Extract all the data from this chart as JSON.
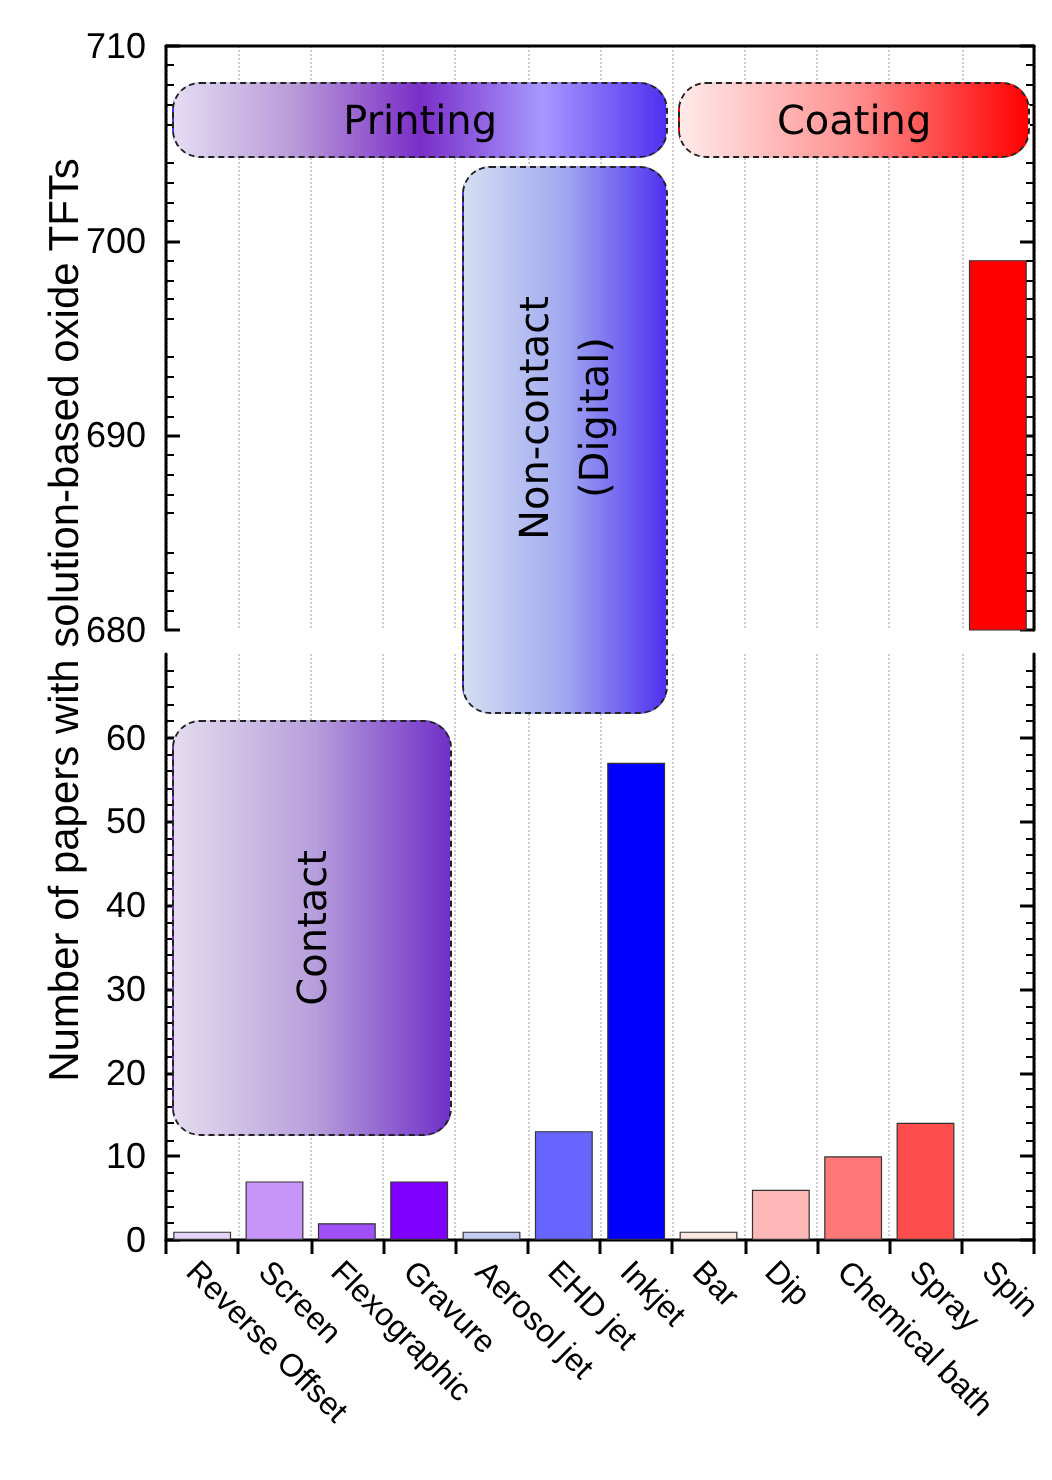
{
  "chart_data": [
    {
      "type": "bar",
      "categories": [
        null,
        null,
        null,
        null,
        null,
        null,
        null,
        null,
        null,
        null,
        null,
        null
      ],
      "values": [
        null,
        null,
        null,
        null,
        null,
        null,
        null,
        null,
        null,
        null,
        null,
        699
      ],
      "colors": [
        "#e4d4f8",
        "#c896fa",
        "#a050f8",
        "#8000ff",
        "#c4ccf4",
        "#6666ff",
        "#0000ff",
        "#ffe8e2",
        "#ffb8b8",
        "#ff7878",
        "#ff4c4c",
        "#ff0000"
      ],
      "ylim": [
        680,
        710
      ],
      "yticks": [
        680,
        690,
        700,
        710
      ],
      "grid": "x",
      "tick_labels": "y",
      "annotations": [
        "Printing",
        "Coating",
        "Non-contact (Digital)"
      ]
    },
    {
      "type": "bar",
      "categories": [
        "Reverse Offset",
        "Screen",
        "Flexographic",
        "Gravure",
        "Aerosol jet",
        "EHD jet",
        "Inkjet",
        "Bar",
        "Dip",
        "Chemical bath",
        "Spray",
        "Spin"
      ],
      "values": [
        1,
        7,
        2,
        7,
        1,
        13,
        57,
        1,
        6,
        10,
        14,
        null
      ],
      "colors": [
        "#e4d4f8",
        "#c896fa",
        "#a050f8",
        "#8000ff",
        "#c4ccf4",
        "#6666ff",
        "#0000ff",
        "#ffe8e2",
        "#ffb8b8",
        "#ff7878",
        "#ff4c4c",
        "#ff0000"
      ],
      "ylim": [
        0,
        70
      ],
      "yticks": [
        0,
        10,
        20,
        30,
        40,
        50,
        60
      ],
      "grid": "x",
      "ylabel": "Number of papers with solution-based oxide TFTs",
      "annotations": [
        "Contact"
      ]
    }
  ]
}
